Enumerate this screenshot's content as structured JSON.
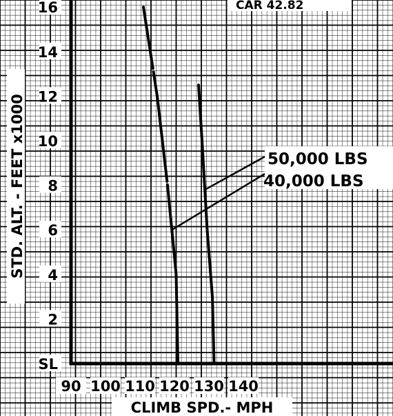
{
  "header": {
    "text": "CAR 42.82"
  },
  "chart_data": {
    "type": "line",
    "xlabel": "CLIMB SPD.- MPH",
    "ylabel": "STD. ALT. - FEET x1000",
    "xlim": [
      90,
      150
    ],
    "ylim": [
      0,
      16
    ],
    "x_ticks": [
      "90",
      "100",
      "110",
      "120",
      "130",
      "140"
    ],
    "y_ticks": [
      "SL",
      "2",
      "4",
      "6",
      "8",
      "10",
      "12",
      "14",
      "16"
    ],
    "grid": true,
    "series": [
      {
        "name": "50,000 LBS",
        "points": [
          [
            111,
            16
          ],
          [
            115,
            12
          ],
          [
            118,
            8
          ],
          [
            120.5,
            4
          ],
          [
            121,
            0
          ]
        ]
      },
      {
        "name": "40,000 LBS",
        "points": [
          [
            127,
            12.5
          ],
          [
            128,
            10
          ],
          [
            129.5,
            6
          ],
          [
            131,
            3
          ],
          [
            131.5,
            0
          ]
        ]
      }
    ],
    "annotations": [
      {
        "text": "50,000 LBS",
        "series": 0
      },
      {
        "text": "40,000 LBS",
        "series": 1
      }
    ]
  }
}
